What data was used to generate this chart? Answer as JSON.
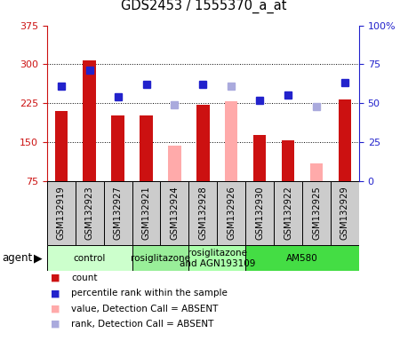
{
  "title": "GDS2453 / 1555370_a_at",
  "samples": [
    "GSM132919",
    "GSM132923",
    "GSM132927",
    "GSM132921",
    "GSM132924",
    "GSM132928",
    "GSM132926",
    "GSM132930",
    "GSM132922",
    "GSM132925",
    "GSM132929"
  ],
  "bar_values": [
    210,
    308,
    202,
    202,
    null,
    222,
    null,
    163,
    153,
    null,
    233
  ],
  "bar_absent_values": [
    null,
    null,
    null,
    null,
    143,
    null,
    228,
    null,
    null,
    108,
    null
  ],
  "rank_values": [
    61,
    71,
    54,
    62,
    null,
    62,
    null,
    52,
    55,
    null,
    63
  ],
  "rank_absent_values": [
    null,
    null,
    null,
    null,
    49,
    null,
    61,
    null,
    null,
    48,
    null
  ],
  "ylim_left": [
    75,
    375
  ],
  "ylim_right": [
    0,
    100
  ],
  "yticks_left": [
    75,
    150,
    225,
    300,
    375
  ],
  "yticks_right": [
    0,
    25,
    50,
    75,
    100
  ],
  "ytick_labels_left": [
    "75",
    "150",
    "225",
    "300",
    "375"
  ],
  "ytick_labels_right": [
    "0",
    "25",
    "50",
    "75",
    "100%"
  ],
  "bar_color": "#CC1111",
  "bar_absent_color": "#FFAAAA",
  "rank_color": "#2222CC",
  "rank_absent_color": "#AAAADD",
  "groups": [
    {
      "label": "control",
      "start": 0,
      "end": 3,
      "color": "#CCFFCC"
    },
    {
      "label": "rosiglitazone",
      "start": 3,
      "end": 5,
      "color": "#99EE99"
    },
    {
      "label": "rosiglitazone\nand AGN193109",
      "start": 5,
      "end": 7,
      "color": "#AAFFAA"
    },
    {
      "label": "AM580",
      "start": 7,
      "end": 11,
      "color": "#44DD44"
    }
  ],
  "bar_width": 0.45,
  "rank_marker_size": 6,
  "plot_bg_color": "#FFFFFF",
  "outer_bg_color": "#FFFFFF",
  "tick_box_color": "#CCCCCC",
  "legend_items": [
    {
      "color": "#CC1111",
      "label": "count",
      "style": "square"
    },
    {
      "color": "#2222CC",
      "label": "percentile rank within the sample",
      "style": "square"
    },
    {
      "color": "#FFAAAA",
      "label": "value, Detection Call = ABSENT",
      "style": "square"
    },
    {
      "color": "#AAAADD",
      "label": "rank, Detection Call = ABSENT",
      "style": "square"
    }
  ]
}
